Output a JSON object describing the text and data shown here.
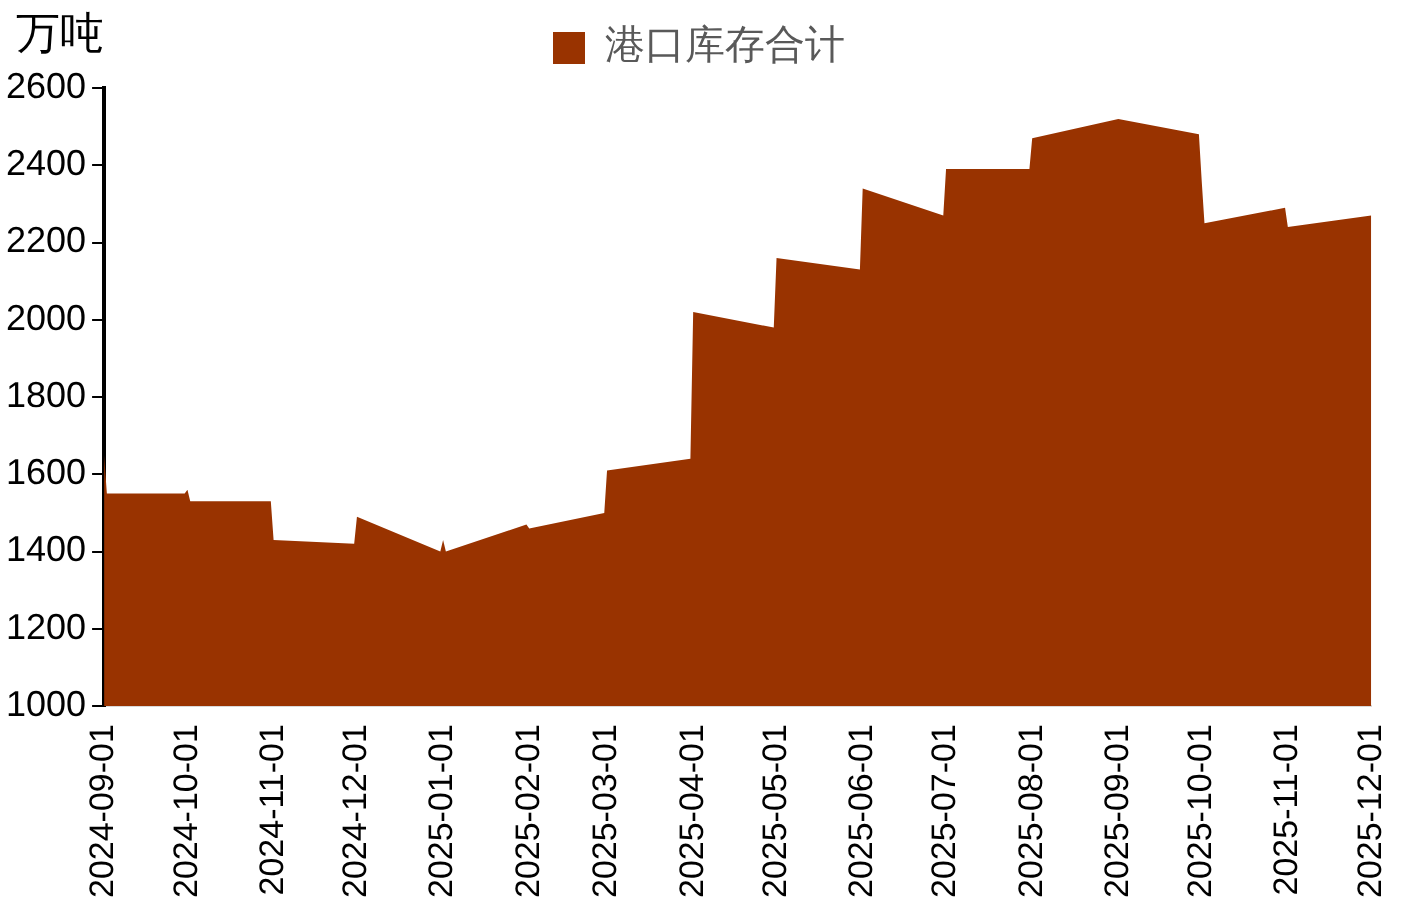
{
  "chart_data": {
    "type": "area",
    "ylabel": "万吨",
    "legend": "top",
    "x": [
      "2024-09-01",
      "2024-09-02",
      "2024-09-30",
      "2024-10-01",
      "2024-10-02",
      "2024-10-31",
      "2024-11-01",
      "2024-11-30",
      "2024-12-01",
      "2024-12-31",
      "2025-01-01",
      "2025-01-02",
      "2025-01-31",
      "2025-02-01",
      "2025-02-28",
      "2025-03-01",
      "2025-03-31",
      "2025-04-01",
      "2025-04-30",
      "2025-05-01",
      "2025-05-31",
      "2025-06-01",
      "2025-06-30",
      "2025-07-01",
      "2025-07-31",
      "2025-08-01",
      "2025-09-01",
      "2025-09-30",
      "2025-10-01",
      "2025-10-02",
      "2025-10-31",
      "2025-11-01",
      "2025-12-01"
    ],
    "series": [
      {
        "name": "港口库存合计",
        "color": "#993300",
        "values": [
          1650,
          1550,
          1550,
          1560,
          1530,
          1530,
          1430,
          1420,
          1490,
          1400,
          1430,
          1400,
          1470,
          1460,
          1500,
          1610,
          1640,
          2020,
          1980,
          2160,
          2130,
          2340,
          2270,
          2390,
          2390,
          2470,
          2520,
          2480,
          2360,
          2250,
          2290,
          2240,
          2270
        ]
      }
    ],
    "xlim": [
      "2024-09-01",
      "2025-12-01"
    ],
    "xticks": [
      "2024-09-01",
      "2024-10-01",
      "2024-11-01",
      "2024-12-01",
      "2025-01-01",
      "2025-02-01",
      "2025-03-01",
      "2025-04-01",
      "2025-05-01",
      "2025-06-01",
      "2025-07-01",
      "2025-08-01",
      "2025-09-01",
      "2025-10-01",
      "2025-11-01",
      "2025-12-01"
    ],
    "ylim": [
      1000,
      2600
    ],
    "yticks": [
      1000,
      1200,
      1400,
      1600,
      1800,
      2000,
      2200,
      2400,
      2600
    ],
    "grid": false
  }
}
